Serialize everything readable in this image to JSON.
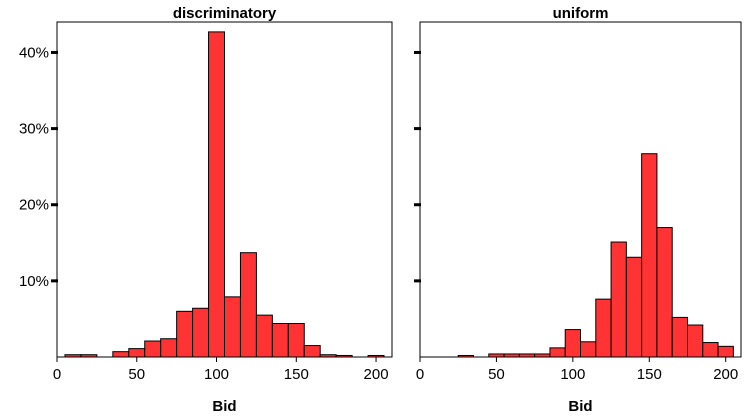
{
  "chart_data": [
    {
      "type": "bar",
      "title": "discriminatory",
      "xlabel": "Bid",
      "ylabel": "",
      "xlim": [
        0,
        210
      ],
      "ylim": [
        0,
        44
      ],
      "x_ticks": [
        0,
        50,
        100,
        150,
        200
      ],
      "y_ticks": [
        10,
        20,
        30,
        40
      ],
      "y_tick_labels": [
        "10%",
        "20%",
        "30%",
        "40%"
      ],
      "show_y_tick_labels": true,
      "bin_width": 10,
      "bins": [
        {
          "start": 5,
          "value": 0.3
        },
        {
          "start": 15,
          "value": 0.3
        },
        {
          "start": 35,
          "value": 0.7
        },
        {
          "start": 45,
          "value": 1.1
        },
        {
          "start": 55,
          "value": 2.1
        },
        {
          "start": 65,
          "value": 2.4
        },
        {
          "start": 75,
          "value": 6.0
        },
        {
          "start": 85,
          "value": 6.4
        },
        {
          "start": 95,
          "value": 42.7
        },
        {
          "start": 105,
          "value": 7.9
        },
        {
          "start": 115,
          "value": 13.7
        },
        {
          "start": 125,
          "value": 5.5
        },
        {
          "start": 135,
          "value": 4.4
        },
        {
          "start": 145,
          "value": 4.4
        },
        {
          "start": 155,
          "value": 1.5
        },
        {
          "start": 165,
          "value": 0.3
        },
        {
          "start": 175,
          "value": 0.2
        },
        {
          "start": 195,
          "value": 0.2
        }
      ]
    },
    {
      "type": "bar",
      "title": "uniform",
      "xlabel": "Bid",
      "ylabel": "",
      "xlim": [
        0,
        210
      ],
      "ylim": [
        0,
        44
      ],
      "x_ticks": [
        0,
        50,
        100,
        150,
        200
      ],
      "y_ticks": [
        10,
        20,
        30,
        40
      ],
      "y_tick_labels": [
        "",
        "",
        "",
        ""
      ],
      "show_y_tick_labels": false,
      "bin_width": 10,
      "bins": [
        {
          "start": 25,
          "value": 0.2
        },
        {
          "start": 45,
          "value": 0.4
        },
        {
          "start": 55,
          "value": 0.4
        },
        {
          "start": 65,
          "value": 0.4
        },
        {
          "start": 75,
          "value": 0.4
        },
        {
          "start": 85,
          "value": 1.2
        },
        {
          "start": 95,
          "value": 3.6
        },
        {
          "start": 105,
          "value": 2.0
        },
        {
          "start": 115,
          "value": 7.6
        },
        {
          "start": 125,
          "value": 15.1
        },
        {
          "start": 135,
          "value": 13.1
        },
        {
          "start": 145,
          "value": 26.7
        },
        {
          "start": 155,
          "value": 17.0
        },
        {
          "start": 165,
          "value": 5.2
        },
        {
          "start": 175,
          "value": 4.2
        },
        {
          "start": 185,
          "value": 1.9
        },
        {
          "start": 195,
          "value": 1.4
        }
      ]
    }
  ]
}
